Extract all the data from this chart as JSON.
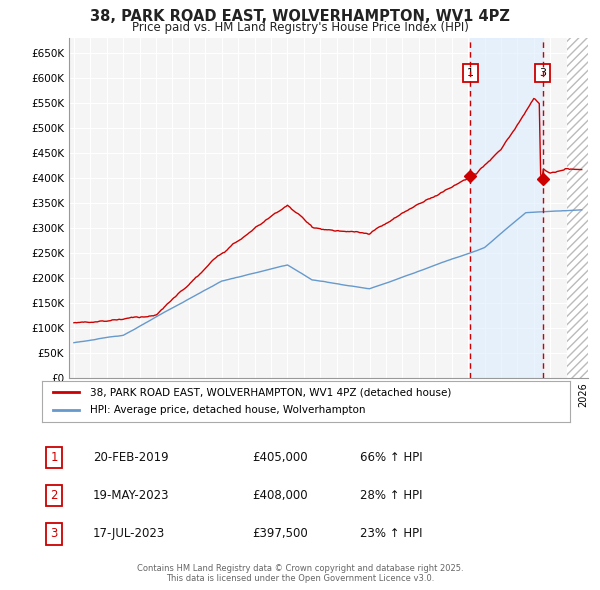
{
  "title": "38, PARK ROAD EAST, WOLVERHAMPTON, WV1 4PZ",
  "subtitle": "Price paid vs. HM Land Registry's House Price Index (HPI)",
  "ylabel_ticks": [
    "£0",
    "£50K",
    "£100K",
    "£150K",
    "£200K",
    "£250K",
    "£300K",
    "£350K",
    "£400K",
    "£450K",
    "£500K",
    "£550K",
    "£600K",
    "£650K"
  ],
  "ytick_values": [
    0,
    50000,
    100000,
    150000,
    200000,
    250000,
    300000,
    350000,
    400000,
    450000,
    500000,
    550000,
    600000,
    650000
  ],
  "ylim": [
    0,
    680000
  ],
  "xlim_start": 1994.7,
  "xlim_end": 2026.3,
  "bg_color": "#ffffff",
  "plot_bg_color": "#f5f5f5",
  "grid_color": "#ffffff",
  "red_color": "#cc0000",
  "blue_color": "#6699cc",
  "shade_color": "#ddeeff",
  "shade_alpha": 0.6,
  "hatch_color": "#cccccc",
  "legend_label_red": "38, PARK ROAD EAST, WOLVERHAMPTON, WV1 4PZ (detached house)",
  "legend_label_blue": "HPI: Average price, detached house, Wolverhampton",
  "transaction_markers": [
    {
      "num": 1,
      "date": "20-FEB-2019",
      "price": 405000,
      "year": 2019.13,
      "hpi_pct": "66%"
    },
    {
      "num": 2,
      "date": "19-MAY-2023",
      "price": 408000,
      "year": 2023.38,
      "hpi_pct": "28%"
    },
    {
      "num": 3,
      "date": "17-JUL-2023",
      "price": 397500,
      "year": 2023.54,
      "hpi_pct": "23%"
    }
  ],
  "footer_text": "Contains HM Land Registry data © Crown copyright and database right 2025.\nThis data is licensed under the Open Government Licence v3.0.",
  "vline1_year": 2019.13,
  "vline3_year": 2023.54,
  "shade_start": 2019.13,
  "shade_end": 2023.54,
  "hatch_start": 2025.0,
  "hatch_end": 2026.3
}
